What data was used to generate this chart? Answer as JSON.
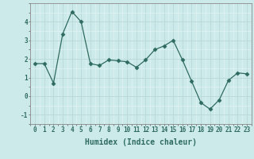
{
  "x": [
    0,
    1,
    2,
    3,
    4,
    5,
    6,
    7,
    8,
    9,
    10,
    11,
    12,
    13,
    14,
    15,
    16,
    17,
    18,
    19,
    20,
    21,
    22,
    23
  ],
  "y": [
    1.75,
    1.75,
    0.7,
    3.35,
    4.55,
    4.0,
    1.75,
    1.65,
    1.95,
    1.9,
    1.85,
    1.55,
    1.95,
    2.5,
    2.7,
    3.0,
    1.95,
    0.8,
    -0.35,
    -0.7,
    -0.2,
    0.85,
    1.25,
    1.2
  ],
  "line_color": "#2e6b5e",
  "marker": "D",
  "marker_size": 2.5,
  "xlabel": "Humidex (Indice chaleur)",
  "xlim": [
    -0.5,
    23.5
  ],
  "ylim": [
    -1.5,
    5.0
  ],
  "yticks": [
    -1,
    0,
    1,
    2,
    3,
    4
  ],
  "xticks": [
    0,
    1,
    2,
    3,
    4,
    5,
    6,
    7,
    8,
    9,
    10,
    11,
    12,
    13,
    14,
    15,
    16,
    17,
    18,
    19,
    20,
    21,
    22,
    23
  ],
  "bg_color": "#cdeaea",
  "grid_color_minor": "#e8f5f5",
  "grid_color_major": "#b8d8d8",
  "line_color_axis": "#555555",
  "label_fontsize": 7,
  "tick_fontsize": 5.5
}
